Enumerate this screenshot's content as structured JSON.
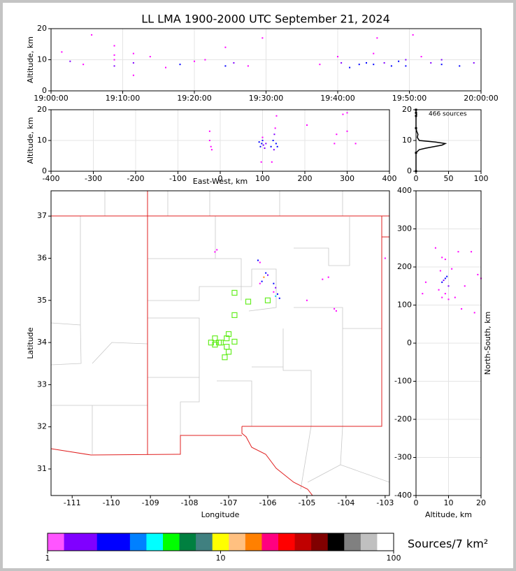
{
  "chart_data": [
    {
      "type": "scatter",
      "title": "LL LMA 1900-2000 UTC September 21, 2024",
      "ylabel": "Altitude, km",
      "xlim": [
        "19:00:00",
        "20:00:00"
      ],
      "xticks": [
        "19:00:00",
        "19:10:00",
        "19:20:00",
        "19:30:00",
        "19:40:00",
        "19:50:00",
        "20:00:00"
      ],
      "ylim": [
        0,
        20
      ],
      "yticks": [
        0,
        10,
        20
      ],
      "grid": true,
      "x": [
        "19:01:30",
        "19:02:40",
        "19:04:30",
        "19:05:40",
        "19:08:50",
        "19:08:50",
        "19:08:50",
        "19:08:50",
        "19:11:30",
        "19:11:30",
        "19:11:30",
        "19:13:50",
        "19:16:00",
        "19:18:00",
        "19:20:00",
        "19:21:30",
        "19:24:20",
        "19:24:20",
        "19:25:30",
        "19:27:30",
        "19:29:30",
        "19:37:30",
        "19:40:00",
        "19:40:30",
        "19:41:40",
        "19:43:00",
        "19:44:00",
        "19:45:00",
        "19:45:00",
        "19:45:30",
        "19:46:30",
        "19:47:30",
        "19:48:30",
        "19:49:30",
        "19:49:30",
        "19:50:30",
        "19:51:40",
        "19:53:00",
        "19:54:30",
        "19:54:30",
        "19:57:00",
        "19:59:00"
      ],
      "y": [
        12.5,
        9.5,
        8.5,
        18,
        8,
        10,
        11.5,
        14.5,
        5,
        9,
        12,
        11,
        7.5,
        8.5,
        9.5,
        10,
        8,
        14,
        9,
        8,
        17,
        8.5,
        11,
        9,
        7.5,
        8.5,
        9,
        8.5,
        12,
        17,
        9,
        8,
        9.5,
        10,
        8,
        18,
        11,
        9,
        10,
        8.5,
        8,
        9
      ],
      "colors": [
        "#ff00ff",
        "#8000ff",
        "#ff00ff",
        "#ff00ff",
        "#8000ff",
        "#ff00ff",
        "#ff00ff",
        "#ff00ff",
        "#ff00ff",
        "#8000ff",
        "#ff00ff",
        "#ff00ff",
        "#ff00ff",
        "#0000ff",
        "#ff00ff",
        "#ff00ff",
        "#0000ff",
        "#ff00ff",
        "#8000ff",
        "#ff00ff",
        "#ff00ff",
        "#ff00ff",
        "#ff00ff",
        "#8000ff",
        "#0000ff",
        "#0000ff",
        "#0000ff",
        "#0000ff",
        "#ff00ff",
        "#ff00ff",
        "#8000ff",
        "#0000ff",
        "#0000ff",
        "#8000ff",
        "#0000ff",
        "#ff00ff",
        "#ff00ff",
        "#8000ff",
        "#8000ff",
        "#0000ff",
        "#0000ff",
        "#8000ff"
      ]
    },
    {
      "type": "scatter",
      "xlabel": "East-West, km",
      "ylabel": "Altitude, km",
      "xlim": [
        -400,
        400
      ],
      "xticks": [
        -400,
        -300,
        -200,
        -100,
        0,
        100,
        200,
        300,
        400
      ],
      "ylim": [
        0,
        20
      ],
      "yticks": [
        0,
        10,
        20
      ],
      "grid": true,
      "x": [
        -25,
        -25,
        -22,
        -20,
        95,
        98,
        100,
        102,
        105,
        92,
        108,
        100,
        97,
        120,
        125,
        128,
        130,
        132,
        135,
        127,
        122,
        133,
        205,
        270,
        290,
        300,
        300,
        275,
        320
      ],
      "y": [
        13,
        10,
        8,
        7,
        8,
        9,
        10,
        8.5,
        7.5,
        9.5,
        9,
        11,
        3,
        8,
        10,
        12,
        14,
        9,
        8,
        7,
        3,
        18,
        15,
        9,
        18.5,
        19,
        13,
        12,
        9
      ],
      "colors": [
        "#ff00ff",
        "#ff00ff",
        "#ff00ff",
        "#ff00ff",
        "#0000ff",
        "#0000ff",
        "#0000ff",
        "#8000ff",
        "#8000ff",
        "#0000ff",
        "#8000ff",
        "#ff00ff",
        "#ff00ff",
        "#0000ff",
        "#0000ff",
        "#8000ff",
        "#ff00ff",
        "#0000ff",
        "#0000ff",
        "#8000ff",
        "#ff00ff",
        "#ff00ff",
        "#ff00ff",
        "#ff00ff",
        "#ff00ff",
        "#ff00ff",
        "#ff00ff",
        "#ff00ff",
        "#ff00ff"
      ]
    },
    {
      "type": "line",
      "annotation": "466 sources",
      "color": "#000000",
      "xlim": [
        0,
        100
      ],
      "xticks": [
        0,
        50,
        100
      ],
      "ylim": [
        0,
        20
      ],
      "yticks": [
        0,
        10,
        20
      ],
      "grid": true,
      "x": [
        0,
        0,
        5,
        15,
        40,
        45,
        30,
        5,
        2,
        3,
        1,
        0,
        0,
        1,
        0,
        0
      ],
      "y": [
        0,
        6,
        7,
        7.5,
        8.5,
        9,
        9.5,
        10,
        11,
        12,
        13,
        14,
        18,
        18.5,
        19,
        20
      ]
    },
    {
      "type": "scatter",
      "xlabel": "Longitude",
      "ylabel": "Latitude",
      "xlim": [
        -111.54,
        -102.89
      ],
      "xticks": [
        -111,
        -110,
        -109,
        -108,
        -107,
        -106,
        -105,
        -104,
        -103
      ],
      "ylim": [
        30.37,
        37.6
      ],
      "yticks": [
        31,
        32,
        33,
        34,
        35,
        36,
        37
      ],
      "grid": false,
      "x": [
        -107.3,
        -107.35,
        -106.25,
        -106.2,
        -106.05,
        -106.1,
        -106.15,
        -106.2,
        -106.0,
        -105.85,
        -105.8,
        -105.75,
        -105.8,
        -105.7,
        -105.85,
        -104.45,
        -104.6,
        -104.3,
        -104.25,
        -103.0,
        -105.0
      ],
      "y": [
        36.2,
        36.15,
        35.95,
        35.9,
        35.65,
        35.55,
        35.45,
        35.4,
        35.6,
        35.4,
        35.3,
        35.15,
        35.1,
        35.05,
        35.2,
        35.55,
        35.5,
        34.8,
        34.75,
        36.0,
        35.0
      ],
      "colors": [
        "#ff00ff",
        "#ff00ff",
        "#0000ff",
        "#ff00ff",
        "#0000ff",
        "#ff8000",
        "#0000ff",
        "#ff00ff",
        "#8000ff",
        "#0000ff",
        "#8000ff",
        "#0000ff",
        "#00ccff",
        "#0000ff",
        "#ff00ff",
        "#ff00ff",
        "#ff00ff",
        "#ff00ff",
        "#ff00ff",
        "#ff00ff",
        "#ff00ff"
      ],
      "stations": {
        "color": "#66ee22",
        "x": [
          -106.85,
          -106.5,
          -106.0,
          -106.85,
          -107.0,
          -107.05,
          -107.35,
          -107.45,
          -107.35,
          -107.2,
          -107.05,
          -106.85,
          -107.0,
          -107.1,
          -107.25
        ],
        "y": [
          35.18,
          34.97,
          35.0,
          34.65,
          34.2,
          34.1,
          34.1,
          34.0,
          33.95,
          34.0,
          33.9,
          34.02,
          33.78,
          33.65,
          34.0
        ]
      }
    },
    {
      "type": "scatter",
      "xlabel": "Altitude, km",
      "ylabel": "North-South, km",
      "xlim": [
        0,
        20
      ],
      "xticks": [
        0,
        10,
        20
      ],
      "ylim": [
        -400,
        400
      ],
      "yticks": [
        -400,
        -300,
        -200,
        -100,
        0,
        100,
        200,
        300,
        400
      ],
      "grid": true,
      "x": [
        8,
        9,
        10,
        7,
        8,
        9,
        9.5,
        8.5,
        10,
        7.5,
        9,
        8,
        12,
        13,
        11,
        14,
        15,
        19,
        17,
        3,
        2,
        6,
        18,
        20
      ],
      "y": [
        120,
        130,
        115,
        140,
        160,
        170,
        175,
        165,
        150,
        190,
        220,
        225,
        120,
        240,
        195,
        90,
        150,
        180,
        240,
        160,
        130,
        250,
        80,
        170
      ],
      "colors": [
        "#ff00ff",
        "#ff00ff",
        "#ff00ff",
        "#ff00ff",
        "#0000ff",
        "#0000ff",
        "#0000ff",
        "#8000ff",
        "#8000ff",
        "#ff00ff",
        "#ff00ff",
        "#ff00ff",
        "#ff00ff",
        "#ff00ff",
        "#ff00ff",
        "#ff00ff",
        "#ff00ff",
        "#ff00ff",
        "#ff00ff",
        "#ff00ff",
        "#ff00ff",
        "#ff00ff",
        "#ff00ff",
        "#ff00ff"
      ]
    },
    {
      "type": "colorbar",
      "label": "Sources/7 km²",
      "log": true,
      "xlim": [
        1,
        100
      ],
      "xticks": [
        1,
        10,
        100
      ],
      "colors": [
        "#ff55ff",
        "#8000ff",
        "#8000ff",
        "#0000ff",
        "#0000ff",
        "#0080ff",
        "#00ffff",
        "#00ff00",
        "#008040",
        "#408080",
        "#ffff00",
        "#ffc080",
        "#ff8000",
        "#ff0080",
        "#ff0000",
        "#c00000",
        "#800000",
        "#000000",
        "#808080",
        "#c0c0c0",
        "#ffffff"
      ]
    }
  ]
}
